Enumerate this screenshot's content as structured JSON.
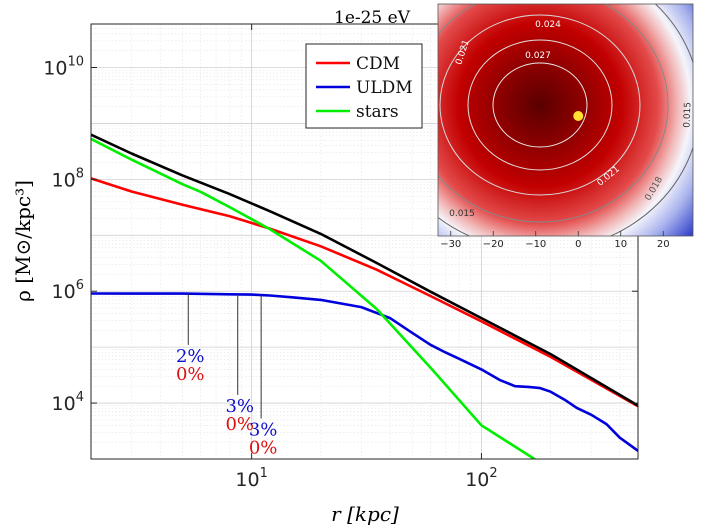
{
  "chart_data": [
    {
      "type": "line",
      "xlabel": "r [kpc]",
      "ylabel": "ρ [M⊙/kpc³]",
      "xscale": "log",
      "yscale": "log",
      "xlim": [
        2,
        480
      ],
      "ylim": [
        1000,
        60000000000
      ],
      "grid": true,
      "legend_position": "top-right",
      "ticks": {
        "x": [
          {
            "value": 10,
            "label": "10",
            "exp": "1"
          },
          {
            "value": 100,
            "label": "10",
            "exp": "2"
          }
        ],
        "y": [
          {
            "value": 10000,
            "label": "10",
            "exp": "4"
          },
          {
            "value": 1000000,
            "label": "10",
            "exp": "6"
          },
          {
            "value": 100000000,
            "label": "10",
            "exp": "8"
          },
          {
            "value": 10000000000,
            "label": "10",
            "exp": "10"
          }
        ]
      },
      "series": [
        {
          "name": "CDM",
          "color": "#ff0000",
          "x": [
            2,
            3,
            5,
            8,
            12,
            20,
            35,
            60,
            100,
            200,
            480
          ],
          "y": [
            104000000,
            60600000,
            35200000,
            22000000,
            13200000,
            6360000,
            2430000,
            820000,
            290000,
            67000,
            8800
          ]
        },
        {
          "name": "ULDM",
          "color": "#0000dd",
          "x": [
            2,
            5,
            8,
            10,
            12,
            15,
            20,
            30,
            40,
            50,
            60,
            70,
            80,
            100,
            120,
            140,
            160,
            180,
            200,
            230,
            260,
            300,
            350,
            400,
            480
          ],
          "y": [
            910000,
            905000,
            880000,
            870000,
            840000,
            780000,
            700000,
            520000,
            330000,
            180000,
            110000,
            80000,
            62000,
            40000,
            26000,
            20000,
            19500,
            18500,
            16000,
            11500,
            8200,
            6200,
            4200,
            2400,
            1400
          ]
        },
        {
          "name": "stars",
          "color": "#00ee00",
          "x": [
            2,
            3,
            5,
            6,
            8,
            12,
            20,
            35,
            60,
            100,
            170
          ],
          "y": [
            530000000,
            226000000,
            82000000,
            60000000,
            32000000,
            12900000,
            3500000,
            480000,
            43000,
            4000,
            1000
          ]
        },
        {
          "name": "",
          "color": "#000000",
          "x": [
            2,
            3,
            5,
            8,
            12,
            20,
            35,
            60,
            100,
            200,
            480
          ],
          "y": [
            630000000,
            290000000,
            118000000,
            55000000,
            27000000,
            10600000,
            3200000,
            980000,
            330000,
            75000,
            9000
          ]
        }
      ],
      "annotations": [
        {
          "x": 5.3,
          "y_line_from": 900000,
          "y_line_to": 110000,
          "top": "2%",
          "bottom": "0%"
        },
        {
          "x": 8.7,
          "y_line_from": 880000,
          "y_line_to": 14000,
          "top": "3%",
          "bottom": "0%"
        },
        {
          "x": 11.0,
          "y_line_from": 850000,
          "y_line_to": 5300,
          "top": "3%",
          "bottom": "0%"
        }
      ]
    },
    {
      "type": "heatmap",
      "title": "1e-25 eV",
      "xlim": [
        -33,
        27
      ],
      "xticks": [
        -30,
        -20,
        -10,
        0,
        10,
        20
      ],
      "contours": [
        {
          "label": "0.027"
        },
        {
          "label": "0.024"
        },
        {
          "label": "0.021"
        },
        {
          "label": "0.021"
        },
        {
          "label": "0.018"
        },
        {
          "label": "0.015"
        },
        {
          "label": "0.015"
        }
      ],
      "marker": {
        "x": 0,
        "color": "#ffe033"
      }
    }
  ]
}
